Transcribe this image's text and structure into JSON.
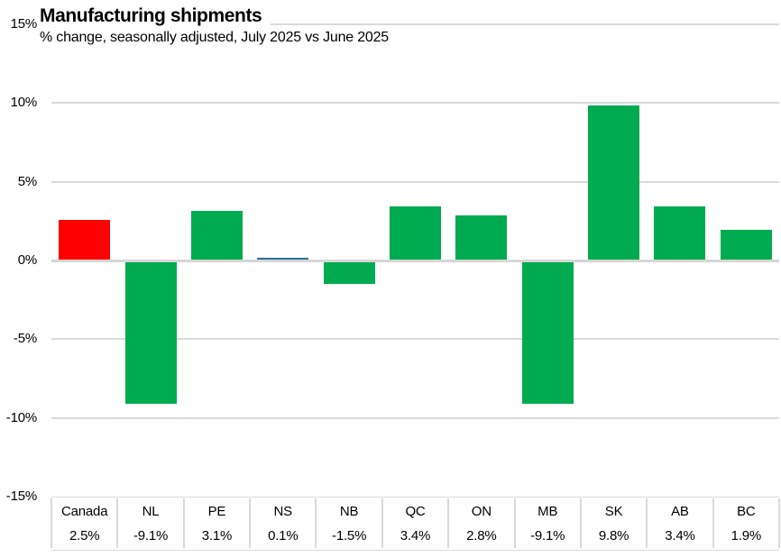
{
  "header": {
    "title": "Manufacturing shipments",
    "subtitle": "% change, seasonally adjusted, July 2025 vs June 2025"
  },
  "chart_data": {
    "type": "bar",
    "title": "Manufacturing shipments",
    "subtitle": "% change, seasonally adjusted, July 2025 vs June 2025",
    "categories": [
      "Canada",
      "NL",
      "PE",
      "NS",
      "NB",
      "QC",
      "ON",
      "MB",
      "SK",
      "AB",
      "BC"
    ],
    "values": [
      2.5,
      -9.1,
      3.1,
      0.1,
      -1.5,
      3.4,
      2.8,
      -9.1,
      9.8,
      3.4,
      1.9
    ],
    "value_labels": [
      "2.5%",
      "-9.1%",
      "3.1%",
      "0.1%",
      "-1.5%",
      "3.4%",
      "2.8%",
      "-9.1%",
      "9.8%",
      "3.4%",
      "1.9%"
    ],
    "bar_colors": [
      "#fe0000",
      "#00ab50",
      "#00ab50",
      "#2d7090",
      "#00ab50",
      "#00ab50",
      "#00ab50",
      "#00ab50",
      "#00ab50",
      "#00ab50",
      "#00ab50"
    ],
    "xlabel": "",
    "ylabel": "",
    "ylim": [
      -15,
      15
    ],
    "yticks": [
      15,
      10,
      5,
      0,
      -5,
      -10,
      -15
    ],
    "ytick_labels": [
      "15%",
      "10%",
      "5%",
      "0%",
      "-5%",
      "-10%",
      "-15%"
    ],
    "grid": true,
    "legend": false,
    "colors": {
      "positive": "#00ab50",
      "canada_highlight": "#fe0000",
      "ns_thin_bar": "#2d7090",
      "gridline": "#d9d9d9",
      "axis_line": "#d6d6d6",
      "text": "#000000"
    }
  }
}
